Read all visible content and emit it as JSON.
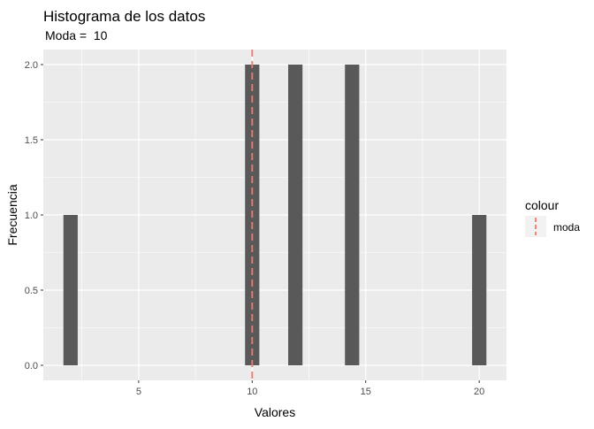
{
  "chart_data": {
    "type": "bar",
    "title": "Histograma de los datos",
    "subtitle": "Moda =  10",
    "xlabel": "Valores",
    "ylabel": "Frecuencia",
    "xlim": [
      0.8,
      21.2
    ],
    "ylim": [
      -0.1,
      2.1
    ],
    "xticks": [
      5,
      10,
      15,
      20
    ],
    "xtick_labels": [
      "5",
      "10",
      "15",
      "20"
    ],
    "yticks": [
      0,
      0.5,
      1,
      1.5,
      2
    ],
    "ytick_labels": [
      "0.0",
      "0.5",
      "1.0",
      "1.5",
      "2.0"
    ],
    "bin_width": 0.63,
    "bins": [
      {
        "center": 2.0,
        "count": 1
      },
      {
        "center": 10.0,
        "count": 2
      },
      {
        "center": 11.9,
        "count": 2
      },
      {
        "center": 14.4,
        "count": 2
      },
      {
        "center": 20.0,
        "count": 1
      }
    ],
    "vline": {
      "x": 10,
      "label": "moda"
    },
    "legend": {
      "title": "colour",
      "items": [
        {
          "label": "moda"
        }
      ],
      "position": "right"
    },
    "grid": true,
    "colors": {
      "panel": "#EBEBEB",
      "grid": "#FFFFFF",
      "bar": "#595959",
      "vline": "#F8766D",
      "text": "#000000",
      "tick_text": "#4D4D4D"
    }
  }
}
